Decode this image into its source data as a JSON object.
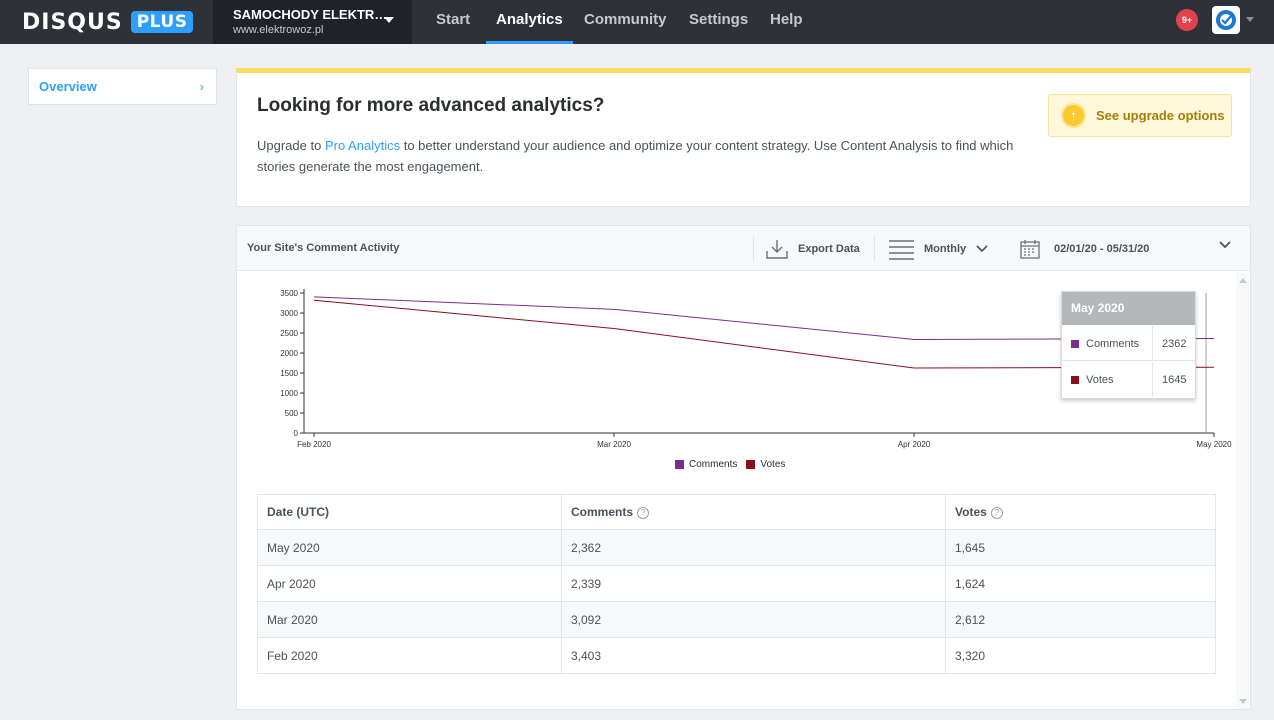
{
  "brand": {
    "name": "DISQUS",
    "badge": "PLUS"
  },
  "site": {
    "name": "SAMOCHODY ELEKTR…",
    "url": "www.elektrowoz.pl"
  },
  "nav": {
    "items": [
      "Start",
      "Analytics",
      "Community",
      "Settings",
      "Help"
    ],
    "active": "Analytics"
  },
  "notifications": {
    "count": "9+"
  },
  "sidebar": {
    "items": [
      {
        "label": "Overview"
      }
    ]
  },
  "upgrade": {
    "title": "Looking for more advanced analytics?",
    "desc_prefix": "Upgrade to ",
    "desc_link": "Pro Analytics",
    "desc_suffix": " to better understand your audience and optimize your content strategy. Use Content Analysis to find which stories generate the most engagement.",
    "button": "See upgrade options"
  },
  "panel": {
    "title": "Your Site's Comment Activity",
    "export": "Export Data",
    "interval": "Monthly",
    "date_range": "02/01/20 - 05/31/20"
  },
  "tooltip": {
    "title": "May 2020",
    "rows": [
      {
        "name": "Comments",
        "value": "2362"
      },
      {
        "name": "Votes",
        "value": "1645"
      }
    ]
  },
  "table": {
    "headers": [
      "Date (UTC)",
      "Comments",
      "Votes"
    ],
    "rows": [
      [
        "May 2020",
        "2,362",
        "1,645"
      ],
      [
        "Apr 2020",
        "2,339",
        "1,624"
      ],
      [
        "Mar 2020",
        "3,092",
        "2,612"
      ],
      [
        "Feb 2020",
        "3,403",
        "3,320"
      ]
    ]
  },
  "chart_data": {
    "type": "line",
    "x": [
      "Feb 2020",
      "Mar 2020",
      "Apr 2020",
      "May 2020"
    ],
    "series": [
      {
        "name": "Comments",
        "color": "#7b2d8b",
        "values": [
          3403,
          3092,
          2339,
          2362
        ]
      },
      {
        "name": "Votes",
        "color": "#8b0f1a",
        "values": [
          3320,
          2612,
          1624,
          1645
        ]
      }
    ],
    "ylim": [
      0,
      3500
    ],
    "yticks": [
      0,
      500,
      1000,
      1500,
      2000,
      2500,
      3000,
      3500
    ],
    "legend": "bottom-center"
  }
}
